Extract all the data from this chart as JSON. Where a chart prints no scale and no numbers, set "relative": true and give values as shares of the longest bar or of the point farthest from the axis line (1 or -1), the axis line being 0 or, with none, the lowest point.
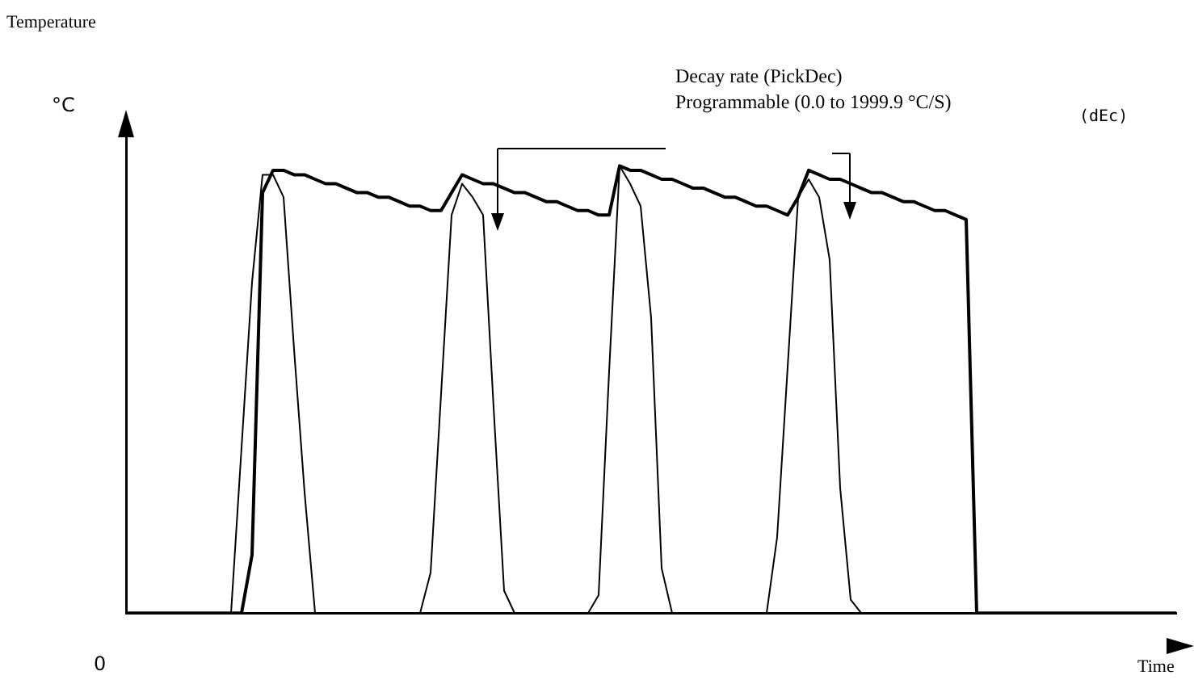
{
  "chart_data": {
    "type": "line",
    "relative": true,
    "xlabel": "Time",
    "grid": false,
    "legend": false,
    "marker": "none",
    "line_style": "solid",
    "annotations": [
      "Temperature",
      "°C",
      "0",
      "Decay rate (PickDec)",
      "Programmable (0.0 to 1999.9 °C/S)",
      "(dEc)"
    ],
    "categories": [
      null,
      null,
      null,
      null,
      null,
      null,
      null,
      null,
      null,
      null,
      null,
      null,
      null,
      null,
      null,
      null,
      null,
      null,
      null,
      null,
      null,
      null,
      null,
      null,
      null,
      null,
      null,
      null,
      null,
      null,
      null,
      null,
      null,
      null,
      null,
      null,
      null,
      null,
      null,
      null,
      null,
      null,
      null,
      null,
      null,
      null,
      null,
      null,
      null,
      null,
      null,
      null,
      null,
      null,
      null,
      null,
      null,
      null,
      null,
      null,
      null,
      null,
      null,
      null,
      null,
      null,
      null,
      null,
      null,
      null,
      null,
      null,
      null,
      null,
      null,
      null,
      null,
      null,
      null,
      null,
      null,
      null,
      null,
      null,
      null,
      null,
      null,
      null,
      null,
      null,
      null,
      null,
      null,
      null,
      null,
      null,
      null,
      null,
      null,
      null,
      null
    ],
    "series": [
      {
        "color": "#000000",
        "values": [
          0,
          0,
          0,
          0,
          0,
          0,
          0,
          0,
          0,
          0,
          0,
          0.37,
          0.74,
          0.98,
          0.98,
          0.93,
          0.59,
          0.27,
          0,
          0,
          0,
          0,
          0,
          0,
          0,
          0,
          0,
          0,
          0,
          0.09,
          0.49,
          0.89,
          0.96,
          0.93,
          0.89,
          0.46,
          0.05,
          0,
          0,
          0,
          0,
          0,
          0,
          0,
          0,
          0.04,
          0.54,
          1,
          0.96,
          0.91,
          0.66,
          0.1,
          0,
          0,
          0,
          0,
          0,
          0,
          0,
          0,
          0,
          0,
          0.17,
          0.55,
          0.93,
          0.97,
          0.93,
          0.79,
          0.28,
          0.03,
          0,
          0,
          0,
          0,
          0,
          0,
          0,
          0,
          0,
          0,
          0,
          0,
          0,
          0,
          0,
          0,
          0,
          0,
          0,
          0,
          0,
          0,
          0,
          0,
          0,
          0,
          0,
          0,
          0,
          0,
          0
        ]
      },
      {
        "color": "#000000",
        "values": [
          0,
          0,
          0,
          0,
          0,
          0,
          0,
          0,
          0,
          0,
          0,
          0,
          0.13,
          0.94,
          0.99,
          0.99,
          0.98,
          0.98,
          0.97,
          0.96,
          0.96,
          0.95,
          0.94,
          0.94,
          0.93,
          0.93,
          0.92,
          0.91,
          0.91,
          0.9,
          0.9,
          0.94,
          0.98,
          0.97,
          0.96,
          0.96,
          0.95,
          0.94,
          0.94,
          0.93,
          0.92,
          0.92,
          0.91,
          0.9,
          0.9,
          0.89,
          0.89,
          1,
          0.99,
          0.99,
          0.98,
          0.97,
          0.97,
          0.96,
          0.95,
          0.95,
          0.94,
          0.93,
          0.93,
          0.92,
          0.91,
          0.91,
          0.9,
          0.89,
          0.93,
          0.99,
          0.98,
          0.97,
          0.97,
          0.96,
          0.95,
          0.94,
          0.94,
          0.93,
          0.92,
          0.92,
          0.91,
          0.9,
          0.9,
          0.89,
          0.88,
          0,
          0,
          0,
          0,
          0,
          0,
          0,
          0,
          0,
          0,
          0,
          0,
          0,
          0,
          0,
          0,
          0,
          0,
          0,
          0
        ]
      }
    ]
  }
}
